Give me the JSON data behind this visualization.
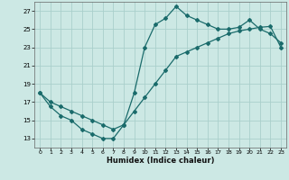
{
  "xlabel": "Humidex (Indice chaleur)",
  "bg_color": "#cce8e4",
  "grid_color": "#aacfcb",
  "line_color": "#1a6b6b",
  "xlim": [
    -0.5,
    23.5
  ],
  "ylim": [
    12.0,
    28.0
  ],
  "xticks": [
    0,
    1,
    2,
    3,
    4,
    5,
    6,
    7,
    8,
    9,
    10,
    11,
    12,
    13,
    14,
    15,
    16,
    17,
    18,
    19,
    20,
    21,
    22,
    23
  ],
  "yticks": [
    13,
    15,
    17,
    19,
    21,
    23,
    25,
    27
  ],
  "curve1_x": [
    0,
    1,
    2,
    3,
    4,
    5,
    6,
    7,
    8,
    9,
    10,
    11,
    12,
    13,
    14,
    15,
    16,
    17,
    18,
    19,
    20,
    21,
    22,
    23
  ],
  "curve1_y": [
    18.0,
    16.5,
    15.5,
    15.0,
    14.0,
    13.5,
    13.0,
    13.0,
    14.5,
    18.0,
    23.0,
    25.5,
    26.2,
    27.5,
    26.5,
    26.0,
    25.5,
    25.0,
    25.0,
    25.2,
    26.0,
    25.0,
    24.5,
    23.5
  ],
  "curve2_x": [
    0,
    1,
    2,
    3,
    4,
    5,
    6,
    7,
    8,
    9,
    10,
    11,
    12,
    13,
    14,
    15,
    16,
    17,
    18,
    19,
    20,
    21,
    22,
    23
  ],
  "curve2_y": [
    18.0,
    17.0,
    16.5,
    16.0,
    15.5,
    15.0,
    14.5,
    14.0,
    14.5,
    16.0,
    17.5,
    19.0,
    20.5,
    22.0,
    22.5,
    23.0,
    23.5,
    24.0,
    24.5,
    24.8,
    25.0,
    25.2,
    25.3,
    23.0
  ]
}
